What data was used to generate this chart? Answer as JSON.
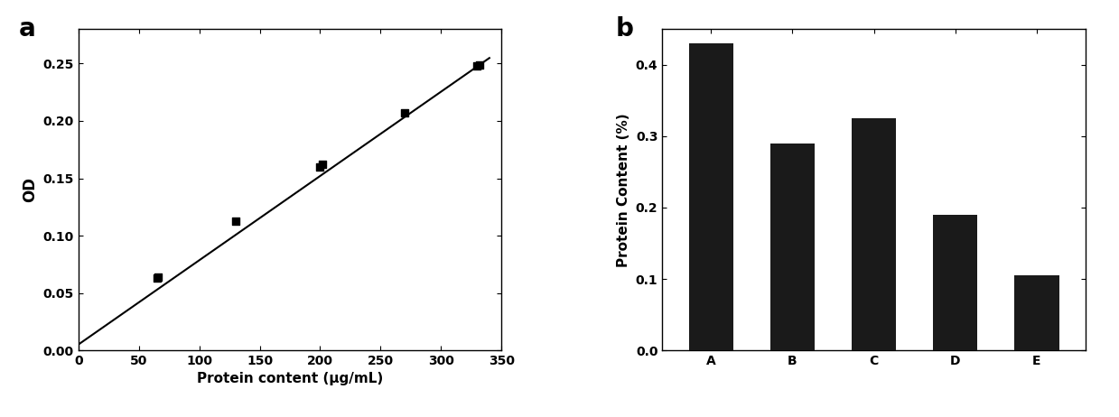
{
  "scatter_x": [
    65,
    66,
    130,
    200,
    202,
    270,
    330,
    332
  ],
  "scatter_y": [
    0.063,
    0.064,
    0.113,
    0.16,
    0.162,
    0.207,
    0.248,
    0.249
  ],
  "line_x": [
    0,
    340
  ],
  "line_slope": 0.000735,
  "line_intercept": 0.005,
  "xlabel_a": "Protein content (μg/mL)",
  "ylabel_a": "OD",
  "xlim_a": [
    0,
    350
  ],
  "ylim_a": [
    0.0,
    0.28
  ],
  "yticks_a": [
    0.0,
    0.05,
    0.1,
    0.15,
    0.2,
    0.25
  ],
  "xticks_a": [
    0,
    50,
    100,
    150,
    200,
    250,
    300,
    350
  ],
  "label_a": "a",
  "bar_categories": [
    "A",
    "B",
    "C",
    "D",
    "E"
  ],
  "bar_values": [
    0.43,
    0.29,
    0.325,
    0.19,
    0.105
  ],
  "bar_color": "#1a1a1a",
  "ylabel_b": "Protein Content (%)",
  "ylim_b": [
    0.0,
    0.45
  ],
  "yticks_b": [
    0.0,
    0.1,
    0.2,
    0.3,
    0.4
  ],
  "label_b": "b",
  "background_color": "#ffffff",
  "tick_color": "#000000",
  "font_color": "#000000",
  "label_fontsize": 20,
  "axis_fontsize": 11,
  "tick_fontsize": 10
}
